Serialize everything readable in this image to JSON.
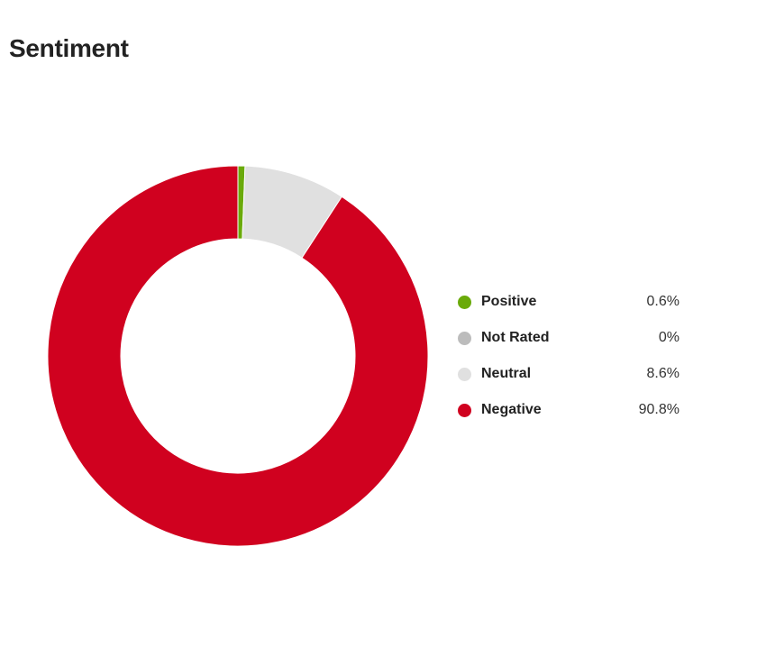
{
  "title": "Sentiment",
  "chart_data": {
    "type": "pie",
    "donut": true,
    "start_angle": "top",
    "direction": "clockwise",
    "slices": [
      {
        "label": "Positive",
        "value": 0.6,
        "display": "0.6%",
        "color": "#6aaa0a"
      },
      {
        "label": "Not Rated",
        "value": 0,
        "display": "0%",
        "color": "#bcbcbc"
      },
      {
        "label": "Neutral",
        "value": 8.6,
        "display": "8.6%",
        "color": "#e0e0e0"
      },
      {
        "label": "Negative",
        "value": 90.8,
        "display": "90.8%",
        "color": "#d0011f"
      }
    ],
    "legend_position": "right"
  }
}
